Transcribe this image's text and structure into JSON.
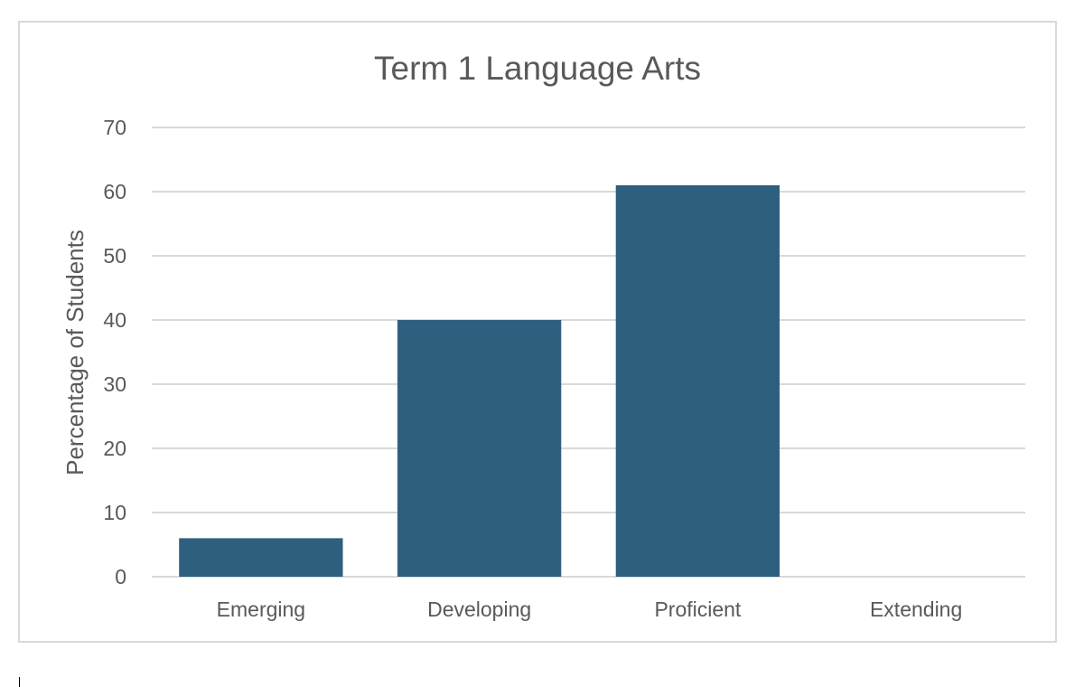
{
  "chart_data": {
    "type": "bar",
    "title": "Term 1 Language Arts",
    "xlabel": "",
    "ylabel": "Percentage of Students",
    "categories": [
      "Emerging",
      "Developing",
      "Proficient",
      "Extending"
    ],
    "values": [
      6,
      40,
      61,
      0
    ],
    "ylim": [
      0,
      70
    ],
    "yticks": [
      "0",
      "10",
      "20",
      "30",
      "40",
      "50",
      "60",
      "70"
    ],
    "grid": true,
    "legend": "none",
    "bar_color": "#2e5f7f"
  }
}
